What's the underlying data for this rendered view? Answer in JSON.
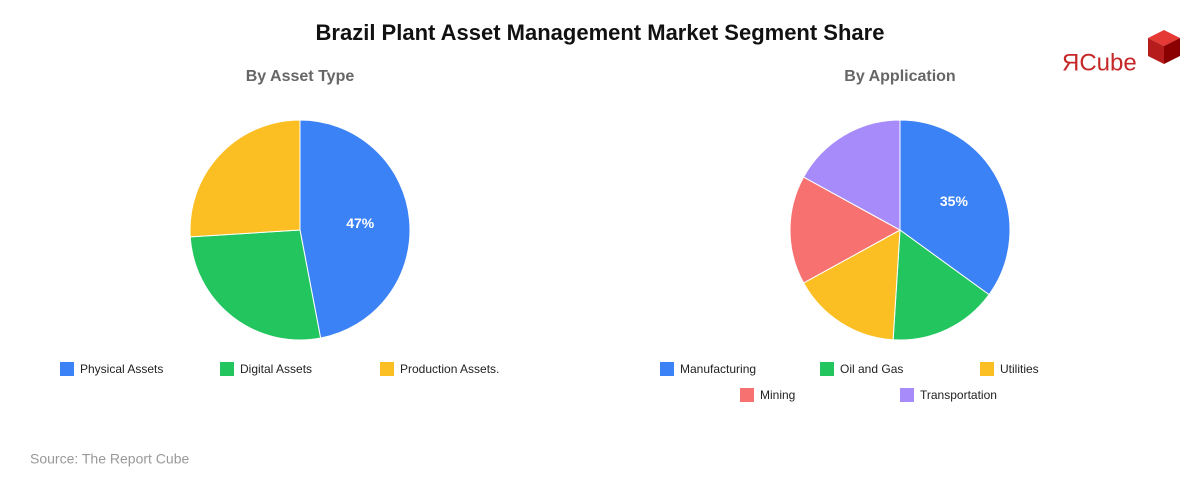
{
  "title": "Brazil Plant Asset Management Market Segment Share",
  "logo": "ЯCube",
  "source": "Source: The Report Cube",
  "chart_data": [
    {
      "type": "pie",
      "title": "By Asset Type",
      "categories": [
        "Physical Assets",
        "Digital Assets",
        "Production Assets."
      ],
      "values": [
        47,
        27,
        26
      ],
      "value_labels": [
        "47%",
        null,
        null
      ],
      "colors": [
        "#3b82f6",
        "#22c55e",
        "#fbbf24"
      ]
    },
    {
      "type": "pie",
      "title": "By Application",
      "categories": [
        "Manufacturing",
        "Oil and Gas",
        "Utilities",
        "Mining",
        "Transportation"
      ],
      "values": [
        35,
        16,
        16,
        16,
        17
      ],
      "value_labels": [
        "35%",
        null,
        null,
        null,
        null
      ],
      "colors": [
        "#3b82f6",
        "#22c55e",
        "#fbbf24",
        "#f87171",
        "#a78bfa"
      ]
    }
  ]
}
